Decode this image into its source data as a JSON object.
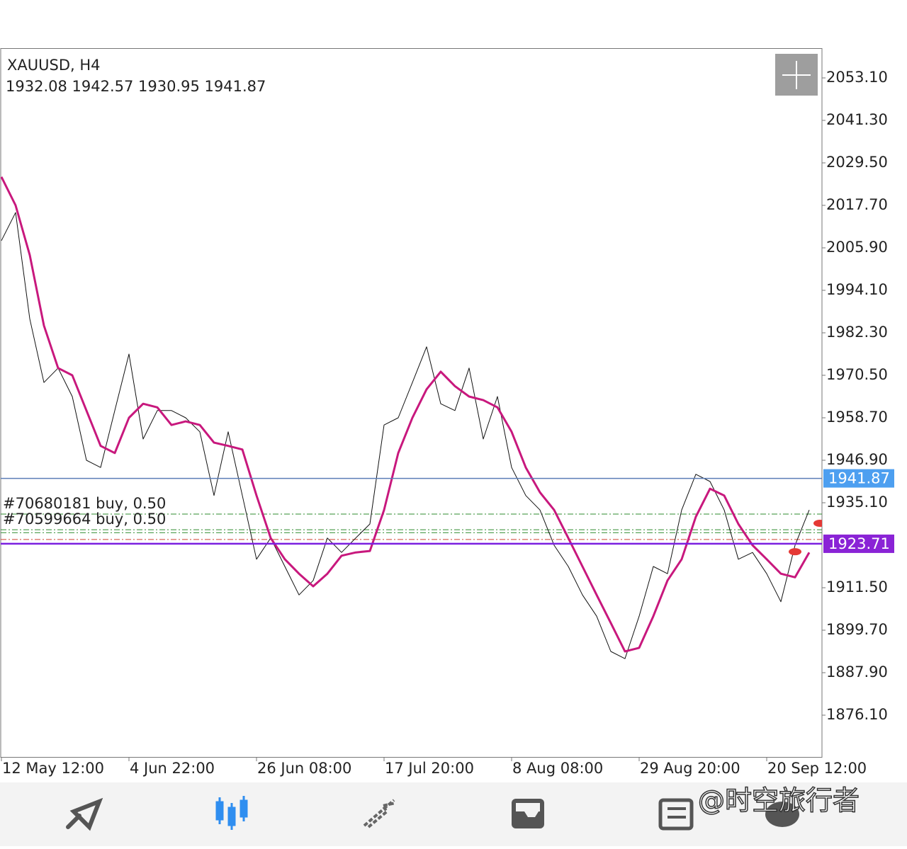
{
  "chart_data": {
    "type": "line",
    "title": "XAUUSD, H4",
    "subtitle": "1932.08 1942.57 1930.95 1941.87",
    "categories": [
      "12 May 12:00",
      null,
      null,
      null,
      null,
      null,
      null,
      null,
      null,
      "4 Jun 22:00",
      null,
      null,
      null,
      null,
      null,
      null,
      null,
      null,
      "26 Jun 08:00",
      null,
      null,
      null,
      null,
      null,
      null,
      null,
      null,
      "17 Jul 20:00",
      null,
      null,
      null,
      null,
      null,
      null,
      null,
      null,
      "8 Aug 08:00",
      null,
      null,
      null,
      null,
      null,
      null,
      null,
      null,
      "29 Aug 20:00",
      null,
      null,
      null,
      null,
      null,
      null,
      null,
      null,
      "20 Sep 12:00",
      null,
      null,
      null
    ],
    "series": [
      {
        "color": "#111111",
        "width": 1,
        "values": [
          2007.9,
          2015.7,
          1986.2,
          1968.5,
          1972.5,
          1964.6,
          1946.9,
          1944.9,
          1960.7,
          1976.4,
          1952.8,
          1960.7,
          1960.7,
          1958.7,
          1954.8,
          1937.1,
          1954.8,
          1937.1,
          1919.4,
          1925.3,
          1917.4,
          1909.5,
          1913.5,
          1925.3,
          1921.3,
          1925.3,
          1929.2,
          1956.7,
          1958.7,
          1968.5,
          1978.4,
          1962.6,
          1960.7,
          1972.5,
          1952.8,
          1964.6,
          1944.9,
          1937.1,
          1933.1,
          1923.3,
          1917.4,
          1909.5,
          1903.6,
          1893.8,
          1891.8,
          1903.6,
          1917.4,
          1915.4,
          1933.1,
          1943.0,
          1941.0,
          1933.1,
          1919.4,
          1921.3,
          1915.4,
          1907.6,
          1923.3,
          1933.1
        ]
      },
      {
        "color": "#c8187d",
        "width": 3,
        "values": [
          2025.6,
          2017.7,
          2003.9,
          1984.3,
          1972.5,
          1970.5,
          1960.7,
          1950.9,
          1948.9,
          1958.7,
          1962.6,
          1961.6,
          1956.7,
          1957.7,
          1956.7,
          1951.8,
          1950.9,
          1949.9,
          1937.1,
          1925.3,
          1919.4,
          1915.4,
          1911.9,
          1915.4,
          1920.4,
          1921.3,
          1921.7,
          1933.1,
          1948.9,
          1958.7,
          1966.6,
          1971.5,
          1967.5,
          1964.6,
          1963.6,
          1961.6,
          1954.8,
          1944.9,
          1938.0,
          1933.1,
          1925.3,
          1917.4,
          1909.5,
          1901.7,
          1893.8,
          1894.8,
          1903.6,
          1913.5,
          1919.4,
          1931.2,
          1939.0,
          1937.1,
          1929.2,
          1923.3,
          1919.4,
          1915.4,
          1914.4,
          1921.3
        ]
      }
    ],
    "ylim": [
      1864.3,
      2060.97
    ],
    "yticks": [
      {
        "value": 2053.1,
        "label": "2053.10"
      },
      {
        "value": 2041.3,
        "label": "2041.30"
      },
      {
        "value": 2029.5,
        "label": "2029.50"
      },
      {
        "value": 2017.7,
        "label": "2017.70"
      },
      {
        "value": 2005.9,
        "label": "2005.90"
      },
      {
        "value": 1994.1,
        "label": "1994.10"
      },
      {
        "value": 1982.3,
        "label": "1982.30"
      },
      {
        "value": 1970.5,
        "label": "1970.50"
      },
      {
        "value": 1958.7,
        "label": "1958.70"
      },
      {
        "value": 1946.9,
        "label": "1946.90"
      },
      {
        "value": 1935.1,
        "label": "1935.10"
      },
      {
        "value": 1911.5,
        "label": "1911.50"
      },
      {
        "value": 1899.7,
        "label": "1899.70"
      },
      {
        "value": 1887.9,
        "label": "1887.90"
      },
      {
        "value": 1876.1,
        "label": "1876.10"
      }
    ],
    "orders": [
      {
        "label": "#70680181 buy, 0.50",
        "value": 1931.95,
        "color": "#2e8b2e"
      },
      {
        "label": "#70599664 buy, 0.50",
        "value": 1927.6,
        "color": "#2e8b2e"
      }
    ],
    "levels": [
      {
        "value": 1926.8,
        "color": "#2e8b2e"
      },
      {
        "value": 1924.9,
        "color": "#d04030"
      }
    ],
    "price_lines": [
      {
        "value": 1941.87,
        "color": "#4d9ff0",
        "line_color": "#5b7db6"
      },
      {
        "value": 1923.71,
        "color": "#8a23d6",
        "line_color": "#7b1fe0"
      }
    ],
    "markers": [
      {
        "index": 56,
        "value": 1921.5,
        "color": "#e53935"
      },
      {
        "index": 57.75,
        "value": 1929.4,
        "color": "#e53935"
      }
    ],
    "watermark": "@时空旅行者"
  }
}
